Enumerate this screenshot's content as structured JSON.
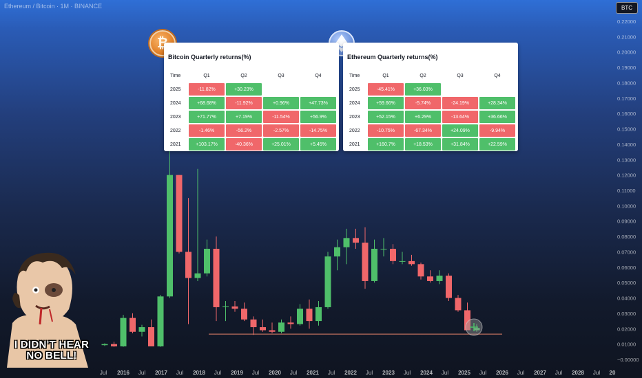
{
  "header": {
    "title": "Ethereum / Bitcoin · 1M · BINANCE",
    "badge": "BTC"
  },
  "panels": [
    {
      "coin": "Bitcoin",
      "title": "Bitcoin Quarterly returns(%)",
      "headers": [
        "Time",
        "Q1",
        "Q2",
        "Q3",
        "Q4"
      ],
      "rows": [
        {
          "year": "2025",
          "cells": [
            "-11.82%",
            "+30.23%",
            "",
            ""
          ]
        },
        {
          "year": "2024",
          "cells": [
            "+68.68%",
            "-11.92%",
            "+0.96%",
            "+47.73%"
          ]
        },
        {
          "year": "2023",
          "cells": [
            "+71.77%",
            "+7.19%",
            "-11.54%",
            "+56.9%"
          ]
        },
        {
          "year": "2022",
          "cells": [
            "-1.46%",
            "-56.2%",
            "-2.57%",
            "-14.75%"
          ]
        },
        {
          "year": "2021",
          "cells": [
            "+103.17%",
            "-40.36%",
            "+25.01%",
            "+5.45%"
          ]
        }
      ]
    },
    {
      "coin": "Ethereum",
      "title": "Ethereum Quarterly returns(%)",
      "headers": [
        "Time",
        "Q1",
        "Q2",
        "Q3",
        "Q4"
      ],
      "rows": [
        {
          "year": "2025",
          "cells": [
            "-45.41%",
            "+36.03%",
            "",
            ""
          ]
        },
        {
          "year": "2024",
          "cells": [
            "+59.66%",
            "-5.74%",
            "-24.19%",
            "+28.34%"
          ]
        },
        {
          "year": "2023",
          "cells": [
            "+52.15%",
            "+6.29%",
            "-13.64%",
            "+36.66%"
          ]
        },
        {
          "year": "2022",
          "cells": [
            "-10.75%",
            "-67.34%",
            "+24.09%",
            "-9.94%"
          ]
        },
        {
          "year": "2021",
          "cells": [
            "+160.7%",
            "+18.53%",
            "+31.84%",
            "+22.59%"
          ]
        }
      ]
    }
  ],
  "meme": {
    "caption_line1": "I DIDN'T HEAR",
    "caption_line2": "NO BELL!"
  },
  "colors": {
    "up": "#4fbf6a",
    "down": "#f0676a",
    "support": "#e8846a"
  },
  "chart_data": {
    "type": "candlestick",
    "y_ticks": [
      "0.22000",
      "0.21000",
      "0.20000",
      "0.19000",
      "0.18000",
      "0.17000",
      "0.16000",
      "0.15000",
      "0.14000",
      "0.13000",
      "0.12000",
      "0.11000",
      "0.10000",
      "0.09000",
      "0.08000",
      "0.07000",
      "0.06000",
      "0.05000",
      "0.04000",
      "0.03000",
      "0.02000",
      "0.01000",
      "−0.00000"
    ],
    "ylim": [
      0,
      0.22
    ],
    "x_ticks": [
      "Jul",
      "2016",
      "Jul",
      "2017",
      "Jul",
      "2018",
      "Jul",
      "2019",
      "Jul",
      "2020",
      "Jul",
      "2021",
      "Jul",
      "2022",
      "Jul",
      "2023",
      "Jul",
      "2024",
      "Jul",
      "2025",
      "Jul",
      "2026",
      "Jul",
      "2027",
      "Jul",
      "2028",
      "Jul",
      "20"
    ],
    "support_level": 0.0165,
    "candles": [
      [
        0.0093,
        0.0105,
        0.0088,
        0.01
      ],
      [
        0.01,
        0.0115,
        0.0082,
        0.0085
      ],
      [
        0.0085,
        0.029,
        0.0082,
        0.027
      ],
      [
        0.027,
        0.03,
        0.017,
        0.018
      ],
      [
        0.018,
        0.0225,
        0.015,
        0.021
      ],
      [
        0.021,
        0.026,
        0.0085,
        0.0085
      ],
      [
        0.0085,
        0.042,
        0.0082,
        0.041
      ],
      [
        0.041,
        0.136,
        0.04,
        0.12
      ],
      [
        0.12,
        0.12,
        0.069,
        0.07
      ],
      [
        0.07,
        0.105,
        0.023,
        0.053
      ],
      [
        0.053,
        0.124,
        0.051,
        0.056
      ],
      [
        0.056,
        0.078,
        0.054,
        0.072
      ],
      [
        0.072,
        0.08,
        0.025,
        0.034
      ],
      [
        0.034,
        0.038,
        0.025,
        0.0345
      ],
      [
        0.0345,
        0.038,
        0.031,
        0.033
      ],
      [
        0.033,
        0.037,
        0.025,
        0.026
      ],
      [
        0.026,
        0.028,
        0.016,
        0.021
      ],
      [
        0.021,
        0.026,
        0.018,
        0.019
      ],
      [
        0.019,
        0.024,
        0.017,
        0.018
      ],
      [
        0.018,
        0.026,
        0.017,
        0.024
      ],
      [
        0.024,
        0.028,
        0.02,
        0.023
      ],
      [
        0.023,
        0.036,
        0.022,
        0.033
      ],
      [
        0.033,
        0.039,
        0.02,
        0.025
      ],
      [
        0.025,
        0.038,
        0.022,
        0.034
      ],
      [
        0.034,
        0.07,
        0.033,
        0.067
      ],
      [
        0.067,
        0.078,
        0.058,
        0.073
      ],
      [
        0.073,
        0.085,
        0.062,
        0.079
      ],
      [
        0.079,
        0.085,
        0.072,
        0.076
      ],
      [
        0.076,
        0.086,
        0.046,
        0.051
      ],
      [
        0.051,
        0.078,
        0.05,
        0.072
      ],
      [
        0.072,
        0.079,
        0.067,
        0.072
      ],
      [
        0.072,
        0.075,
        0.062,
        0.064
      ],
      [
        0.064,
        0.07,
        0.062,
        0.064
      ],
      [
        0.064,
        0.068,
        0.061,
        0.062
      ],
      [
        0.062,
        0.063,
        0.052,
        0.054
      ],
      [
        0.054,
        0.058,
        0.05,
        0.051
      ],
      [
        0.051,
        0.058,
        0.049,
        0.0545
      ],
      [
        0.0545,
        0.056,
        0.038,
        0.04
      ],
      [
        0.04,
        0.042,
        0.031,
        0.032
      ],
      [
        0.032,
        0.037,
        0.019,
        0.019
      ],
      [
        0.019,
        0.023,
        0.018,
        0.0205
      ]
    ]
  }
}
